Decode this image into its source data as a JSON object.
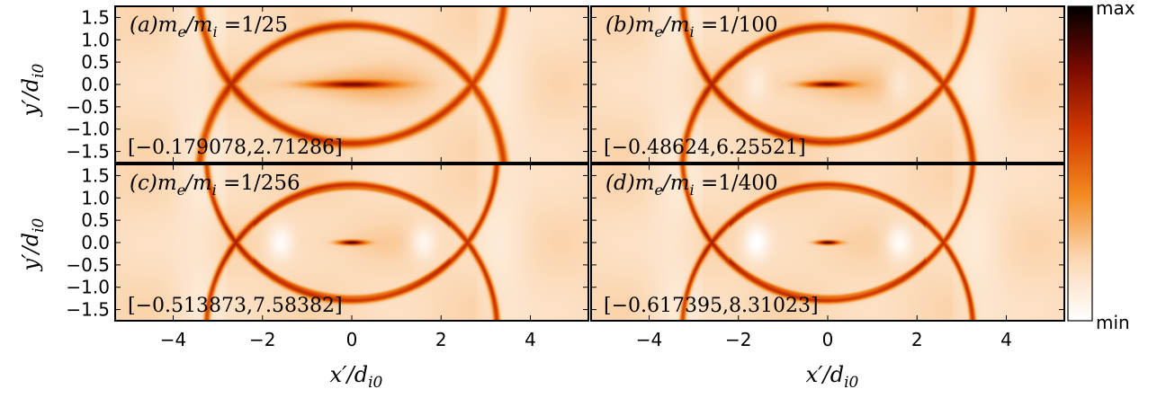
{
  "chart_data": [
    {
      "type": "heatmap",
      "label": "(a)m_e/m_i = 1/25",
      "panel_id": "(a)",
      "mass_ratio": "1/25",
      "range_label": "[−0.179078,2.71286]",
      "value_min": -0.179078,
      "value_max": 2.71286,
      "xlim": [
        -5.3,
        5.3
      ],
      "ylim": [
        -1.75,
        1.75
      ],
      "features": {
        "xline_halfwidth": 0.9,
        "separatrix_tip": 2.7,
        "sharpness": 0.2
      }
    },
    {
      "type": "heatmap",
      "label": "(b)m_e/m_i = 1/100",
      "panel_id": "(b)",
      "mass_ratio": "1/100",
      "range_label": "[−0.48624,6.25521]",
      "value_min": -0.48624,
      "value_max": 6.25521,
      "xlim": [
        -5.3,
        5.3
      ],
      "ylim": [
        -1.75,
        1.75
      ],
      "features": {
        "xline_halfwidth": 0.5,
        "separatrix_tip": 2.6,
        "sharpness": 0.5
      }
    },
    {
      "type": "heatmap",
      "label": "(c)m_e/m_i = 1/256",
      "panel_id": "(c)",
      "mass_ratio": "1/256",
      "range_label": "[−0.513873,7.58382]",
      "value_min": -0.513873,
      "value_max": 7.58382,
      "xlim": [
        -5.3,
        5.3
      ],
      "ylim": [
        -1.75,
        1.75
      ],
      "features": {
        "xline_halfwidth": 0.3,
        "separatrix_tip": 2.6,
        "sharpness": 0.8
      }
    },
    {
      "type": "heatmap",
      "label": "(d)m_e/m_i = 1/400",
      "panel_id": "(d)",
      "mass_ratio": "1/400",
      "range_label": "[−0.617395,8.31023]",
      "value_min": -0.617395,
      "value_max": 8.31023,
      "xlim": [
        -5.3,
        5.3
      ],
      "ylim": [
        -1.75,
        1.75
      ],
      "features": {
        "xline_halfwidth": 0.25,
        "separatrix_tip": 2.6,
        "sharpness": 0.9
      }
    }
  ],
  "axes": {
    "xlabel": "x′/d_i0",
    "ylabel": "y′/d_i0",
    "xticks": [
      -4,
      -2,
      0,
      2,
      4
    ],
    "yticks": [
      1.5,
      1.0,
      0.5,
      0.0,
      -0.5,
      -1.0,
      -1.5
    ],
    "xtick_labels": [
      "−4",
      "−2",
      "0",
      "2",
      "4"
    ],
    "ytick_labels": [
      "1.5",
      "1.0",
      "0.5",
      "0.0",
      "−0.5",
      "−1.0",
      "−1.5"
    ]
  },
  "colorbar": {
    "max_label": "max",
    "min_label": "min",
    "colormap": "gist_heat_r",
    "colors": [
      "#ffffff",
      "#fbd7b2",
      "#f28a20",
      "#d43a00",
      "#7a0a00",
      "#000000"
    ]
  }
}
